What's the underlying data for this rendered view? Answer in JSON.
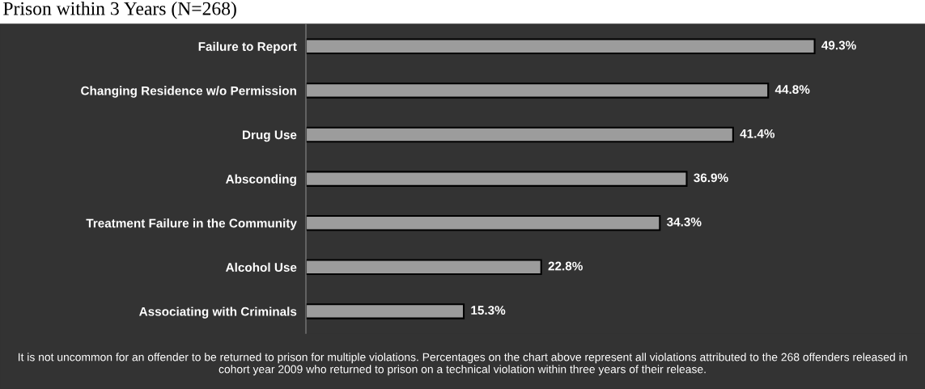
{
  "chart_data": {
    "type": "bar",
    "orientation": "horizontal",
    "title": "Prison within 3 Years (N=268)",
    "categories": [
      "Failure to Report",
      "Changing Residence w/o Permission",
      "Drug Use",
      "Absconding",
      "Treatment Failure in the Community",
      "Alcohol Use",
      "Associating with Criminals"
    ],
    "values": [
      49.3,
      44.8,
      41.4,
      36.9,
      34.3,
      22.8,
      15.3
    ],
    "value_labels": [
      "49.3%",
      "44.8%",
      "41.4%",
      "36.9%",
      "34.3%",
      "22.8%",
      "15.3%"
    ],
    "color": "#9c9c9c",
    "xlim": [
      0,
      60
    ],
    "grid": false,
    "legend": false,
    "tick_labels": "y",
    "annotations": [
      "It is not uncommon for an offender to be returned to prison for multiple violations. Percentages on the chart above represent all violations attributed to the 268 offenders released in cohort year 2009 who returned to prison on a technical violation within three years of their release."
    ]
  }
}
